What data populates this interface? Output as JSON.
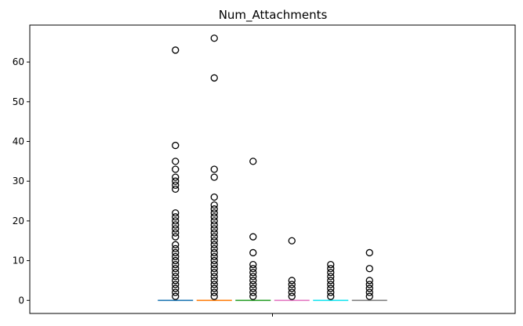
{
  "chart_data": {
    "type": "box",
    "title": "Num_Attachments",
    "xlabel": "",
    "ylabel": "",
    "ylim": [
      -3.3,
      69.3
    ],
    "yticks": [
      0,
      10,
      20,
      30,
      40,
      50,
      60
    ],
    "ytick_labels": [
      "0",
      "10",
      "20",
      "30",
      "40",
      "50",
      "60"
    ],
    "grid": false,
    "series": [
      {
        "color": "#1f77b4",
        "median": 0,
        "q1": 0,
        "q3": 0,
        "whisker_low": 0,
        "whisker_high": 0,
        "outliers": [
          1,
          2,
          3,
          4,
          5,
          6,
          7,
          8,
          9,
          10,
          11,
          12,
          13,
          14,
          16,
          17,
          18,
          19,
          20,
          21,
          22,
          28,
          29,
          30,
          31,
          33,
          35,
          39,
          63
        ]
      },
      {
        "color": "#ff7f0e",
        "median": 0,
        "q1": 0,
        "q3": 0,
        "whisker_low": 0,
        "whisker_high": 0,
        "outliers": [
          1,
          2,
          3,
          4,
          5,
          6,
          7,
          8,
          9,
          10,
          11,
          12,
          13,
          14,
          15,
          16,
          17,
          18,
          19,
          20,
          21,
          22,
          23,
          24,
          26,
          31,
          33,
          56,
          66
        ]
      },
      {
        "color": "#2ca02c",
        "median": 0,
        "q1": 0,
        "q3": 0,
        "whisker_low": 0,
        "whisker_high": 0,
        "outliers": [
          1,
          2,
          3,
          4,
          5,
          6,
          7,
          8,
          9,
          12,
          16,
          35
        ]
      },
      {
        "color": "#e377c2",
        "median": 0,
        "q1": 0,
        "q3": 0,
        "whisker_low": 0,
        "whisker_high": 0,
        "outliers": [
          1,
          2,
          3,
          4,
          5,
          15
        ]
      },
      {
        "color": "#17e5f0",
        "median": 0,
        "q1": 0,
        "q3": 0,
        "whisker_low": 0,
        "whisker_high": 0,
        "outliers": [
          1,
          2,
          3,
          4,
          5,
          6,
          7,
          8,
          9
        ]
      },
      {
        "color": "#7f7f7f",
        "median": 0,
        "q1": 0,
        "q3": 0,
        "whisker_low": 0,
        "whisker_high": 0,
        "outliers": [
          1,
          2,
          3,
          4,
          5,
          8,
          12
        ]
      }
    ]
  }
}
